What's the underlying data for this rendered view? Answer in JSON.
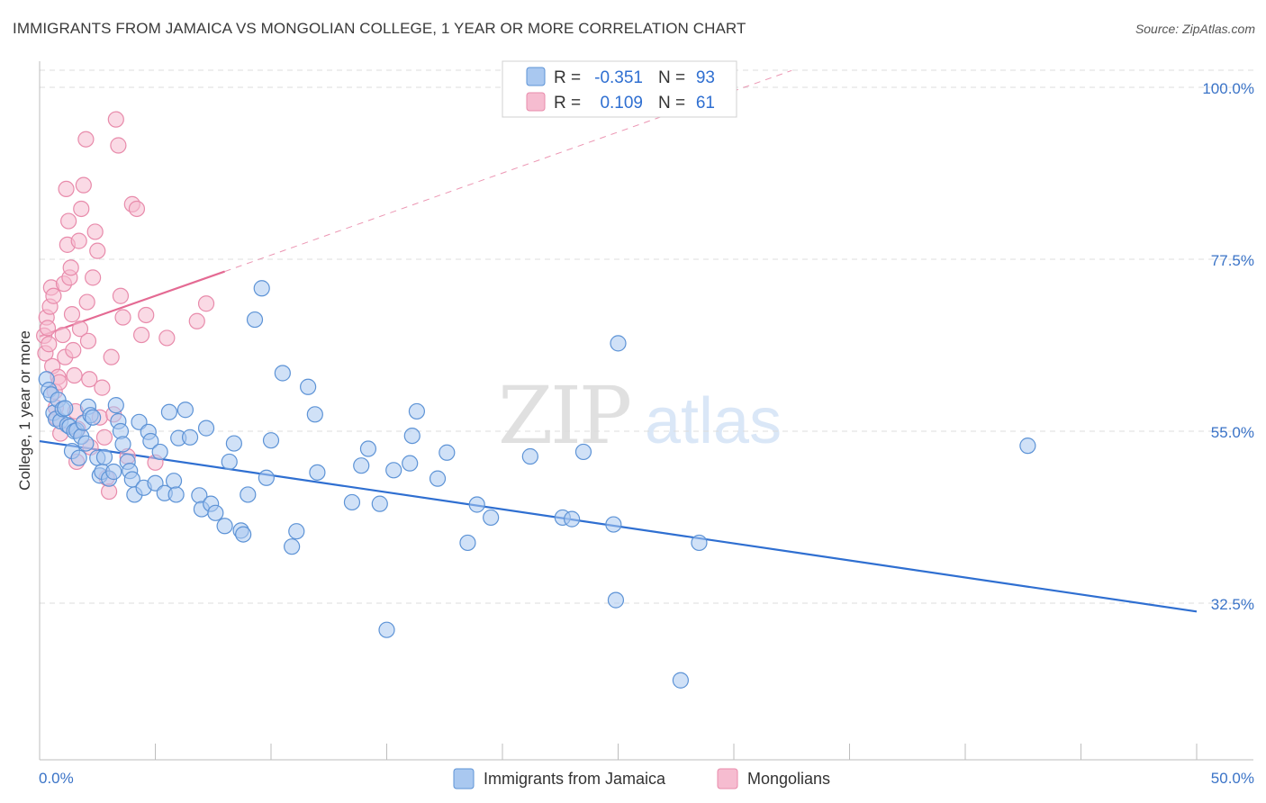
{
  "title": "IMMIGRANTS FROM JAMAICA VS MONGOLIAN COLLEGE, 1 YEAR OR MORE CORRELATION CHART",
  "source": "Source: ZipAtlas.com",
  "colors": {
    "blue_fill": "#a9c8f0",
    "blue_stroke": "#5d93d6",
    "blue_line": "#2f6fd1",
    "pink_fill": "#f6bcd0",
    "pink_stroke": "#e88bab",
    "pink_line": "#e46a93",
    "tick_text": "#3a73c7",
    "grid": "#dcdcdc"
  },
  "legend": {
    "r_label": "R =",
    "n_label": "N =",
    "rows": [
      {
        "r": "-0.351",
        "n": "93"
      },
      {
        "r": "0.109",
        "n": "61"
      }
    ]
  },
  "bottom_legend": [
    "Immigrants from Jamaica",
    "Mongolians"
  ],
  "watermark": {
    "zip": "ZIP",
    "atlas": "atlas"
  },
  "chart_data": {
    "type": "scatter",
    "title": "IMMIGRANTS FROM JAMAICA VS MONGOLIAN COLLEGE, 1 YEAR OR MORE CORRELATION CHART",
    "xlabel": "",
    "ylabel": "College, 1 year or more",
    "xlim": [
      0,
      50
    ],
    "ylim": [
      12.5,
      105
    ],
    "x_tick_labels": [
      "0.0%",
      "50.0%"
    ],
    "y_ticks": [
      32.5,
      55.0,
      77.5,
      100.0
    ],
    "y_tick_labels": [
      "32.5%",
      "55.0%",
      "77.5%",
      "100.0%"
    ],
    "series": [
      {
        "name": "Immigrants from Jamaica",
        "r": -0.351,
        "n": 93,
        "trend": {
          "x0": 0,
          "y0": 53.7,
          "x1": 50,
          "y1": 31.4
        },
        "points": [
          [
            0.3,
            61.8
          ],
          [
            0.4,
            60.4
          ],
          [
            0.5,
            59.8
          ],
          [
            0.6,
            57.4
          ],
          [
            0.7,
            56.6
          ],
          [
            0.8,
            59.1
          ],
          [
            0.9,
            56.3
          ],
          [
            1.0,
            57.9
          ],
          [
            1.1,
            58.0
          ],
          [
            1.2,
            55.8
          ],
          [
            1.3,
            55.6
          ],
          [
            1.4,
            52.4
          ],
          [
            1.5,
            55.0
          ],
          [
            1.6,
            55.1
          ],
          [
            1.7,
            51.5
          ],
          [
            1.8,
            54.3
          ],
          [
            1.9,
            56.1
          ],
          [
            2.0,
            53.4
          ],
          [
            2.1,
            58.2
          ],
          [
            2.2,
            57.1
          ],
          [
            2.3,
            56.8
          ],
          [
            2.5,
            51.5
          ],
          [
            2.6,
            49.2
          ],
          [
            2.7,
            49.7
          ],
          [
            2.8,
            51.6
          ],
          [
            3.0,
            48.8
          ],
          [
            3.2,
            49.7
          ],
          [
            3.3,
            58.4
          ],
          [
            3.4,
            56.3
          ],
          [
            3.5,
            55.0
          ],
          [
            3.6,
            53.3
          ],
          [
            3.8,
            51.0
          ],
          [
            3.9,
            49.8
          ],
          [
            4.0,
            48.7
          ],
          [
            4.1,
            46.7
          ],
          [
            4.3,
            56.2
          ],
          [
            4.5,
            47.6
          ],
          [
            4.7,
            54.9
          ],
          [
            4.8,
            53.7
          ],
          [
            5.0,
            48.2
          ],
          [
            5.2,
            52.3
          ],
          [
            5.4,
            46.9
          ],
          [
            5.6,
            57.5
          ],
          [
            5.8,
            48.5
          ],
          [
            5.9,
            46.7
          ],
          [
            6.0,
            54.1
          ],
          [
            6.3,
            57.8
          ],
          [
            6.5,
            54.2
          ],
          [
            6.9,
            46.6
          ],
          [
            7.0,
            44.8
          ],
          [
            7.2,
            55.4
          ],
          [
            7.4,
            45.5
          ],
          [
            7.6,
            44.3
          ],
          [
            8.0,
            42.6
          ],
          [
            8.2,
            51.0
          ],
          [
            8.4,
            53.4
          ],
          [
            8.7,
            42.0
          ],
          [
            8.8,
            41.5
          ],
          [
            9.0,
            46.7
          ],
          [
            9.3,
            69.6
          ],
          [
            9.6,
            73.7
          ],
          [
            9.8,
            48.9
          ],
          [
            10.0,
            53.8
          ],
          [
            10.5,
            62.6
          ],
          [
            10.9,
            39.9
          ],
          [
            11.1,
            41.9
          ],
          [
            11.6,
            60.8
          ],
          [
            11.9,
            57.2
          ],
          [
            12.0,
            49.6
          ],
          [
            13.5,
            45.7
          ],
          [
            13.9,
            50.5
          ],
          [
            14.2,
            52.7
          ],
          [
            14.7,
            45.5
          ],
          [
            15.0,
            29.0
          ],
          [
            15.3,
            49.9
          ],
          [
            16.0,
            50.8
          ],
          [
            16.1,
            54.4
          ],
          [
            16.3,
            57.6
          ],
          [
            17.2,
            48.8
          ],
          [
            17.6,
            52.2
          ],
          [
            18.5,
            40.4
          ],
          [
            18.9,
            45.4
          ],
          [
            19.5,
            43.7
          ],
          [
            21.2,
            51.7
          ],
          [
            22.6,
            43.7
          ],
          [
            23.0,
            43.5
          ],
          [
            23.5,
            52.3
          ],
          [
            24.8,
            42.8
          ],
          [
            24.9,
            32.9
          ],
          [
            25.0,
            66.5
          ],
          [
            27.7,
            22.4
          ],
          [
            28.5,
            40.4
          ],
          [
            42.7,
            53.1
          ]
        ]
      },
      {
        "name": "Mongolians",
        "r": 0.109,
        "n": 61,
        "trend": {
          "x0": 0,
          "y0": 67.4,
          "x1": 8,
          "y1": 75.9
        },
        "trend_dashed": {
          "x0": 8,
          "y0": 75.9,
          "x1": 32.5,
          "y1": 102.2
        },
        "points": [
          [
            0.2,
            67.5
          ],
          [
            0.25,
            65.2
          ],
          [
            0.3,
            69.9
          ],
          [
            0.35,
            68.5
          ],
          [
            0.4,
            66.4
          ],
          [
            0.45,
            71.3
          ],
          [
            0.5,
            73.8
          ],
          [
            0.55,
            63.5
          ],
          [
            0.6,
            72.7
          ],
          [
            0.65,
            60.2
          ],
          [
            0.7,
            58.1
          ],
          [
            0.75,
            56.7
          ],
          [
            0.8,
            62.1
          ],
          [
            0.85,
            61.4
          ],
          [
            0.9,
            54.7
          ],
          [
            1.0,
            67.6
          ],
          [
            1.05,
            74.3
          ],
          [
            1.1,
            64.7
          ],
          [
            1.15,
            86.7
          ],
          [
            1.2,
            79.4
          ],
          [
            1.25,
            82.5
          ],
          [
            1.3,
            75.1
          ],
          [
            1.35,
            76.4
          ],
          [
            1.4,
            70.3
          ],
          [
            1.45,
            65.6
          ],
          [
            1.5,
            62.3
          ],
          [
            1.55,
            57.6
          ],
          [
            1.6,
            51.0
          ],
          [
            1.65,
            55.3
          ],
          [
            1.7,
            79.9
          ],
          [
            1.75,
            68.4
          ],
          [
            1.8,
            84.1
          ],
          [
            1.9,
            87.2
          ],
          [
            2.0,
            93.2
          ],
          [
            2.05,
            71.9
          ],
          [
            2.1,
            66.8
          ],
          [
            2.15,
            61.8
          ],
          [
            2.2,
            52.9
          ],
          [
            2.3,
            75.1
          ],
          [
            2.4,
            81.1
          ],
          [
            2.5,
            78.6
          ],
          [
            2.6,
            56.8
          ],
          [
            2.7,
            60.7
          ],
          [
            2.8,
            54.2
          ],
          [
            2.9,
            48.9
          ],
          [
            3.0,
            47.1
          ],
          [
            3.1,
            64.7
          ],
          [
            3.2,
            57.2
          ],
          [
            3.3,
            95.8
          ],
          [
            3.4,
            92.4
          ],
          [
            3.5,
            72.7
          ],
          [
            3.6,
            69.9
          ],
          [
            3.8,
            51.7
          ],
          [
            4.0,
            84.7
          ],
          [
            4.2,
            84.1
          ],
          [
            4.4,
            67.6
          ],
          [
            4.6,
            70.2
          ],
          [
            5.0,
            50.9
          ],
          [
            5.5,
            67.2
          ],
          [
            6.8,
            69.4
          ],
          [
            7.2,
            71.7
          ]
        ]
      }
    ]
  }
}
